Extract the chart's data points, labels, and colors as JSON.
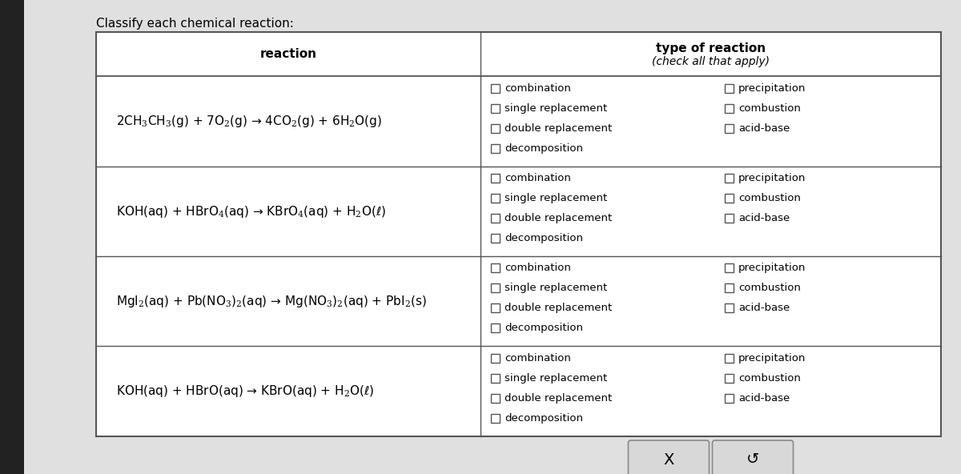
{
  "title": "Classify each chemical reaction:",
  "bg_color": "#c8c8c8",
  "page_bg": "#e0e0e0",
  "table_bg": "#ffffff",
  "border_color": "#888888",
  "dark_left_bar": "#222222",
  "reactions_math": [
    "2CH$_3$CH$_3$(g) + 7O$_2$(g) → 4CO$_2$(g) + 6H$_2$O(g)",
    "KOH(aq) + HBrO$_4$(aq) → KBrO$_4$(aq) + H$_2$O(ℓ)",
    "MgI$_2$(aq) + Pb(NO$_3$)$_2$(aq) → Mg(NO$_3$)$_2$(aq) + PbI$_2$(s)",
    "KOH(aq) + HBrO(aq) → KBrO(aq) + H$_2$O(ℓ)"
  ],
  "reaction_label": "reaction",
  "type_header_line1": "type of reaction",
  "type_header_line2": "(check all that apply)",
  "checkboxes_left": [
    "combination",
    "single replacement",
    "double replacement",
    "decomposition"
  ],
  "checkboxes_right": [
    "precipitation",
    "combustion",
    "acid-base"
  ],
  "footer_buttons": [
    "X",
    "↺"
  ],
  "figsize": [
    12.0,
    5.92
  ],
  "dpi": 100
}
